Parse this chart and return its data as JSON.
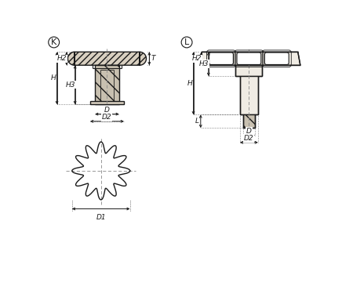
{
  "bg_color": "#ffffff",
  "line_color": "#1a1a1a",
  "dim_color": "#1a1a1a",
  "center_color": "#888888",
  "hatch_diag": "////",
  "hatch_back": "\\\\",
  "face_color": "#d8cfc0",
  "face_color2": "#c8c0b0",
  "K_label": "K",
  "L_label": "L",
  "labels": [
    "H",
    "H2",
    "H3",
    "T",
    "D",
    "D2",
    "D1",
    "L"
  ]
}
